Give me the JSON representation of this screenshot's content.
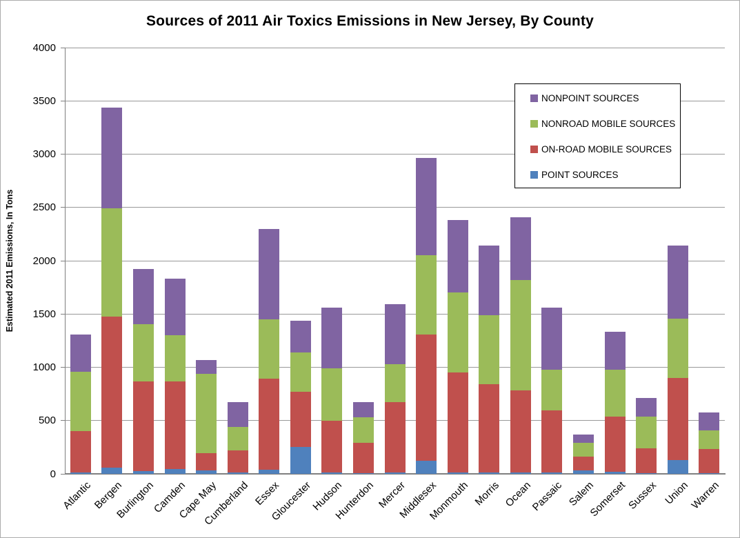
{
  "title": "Sources of 2011 Air Toxics Emissions in New Jersey, By County",
  "y_axis": {
    "label": "Estimated 2011 Emissions, In Tons",
    "min": 0,
    "max": 4000,
    "step": 500
  },
  "legend": {
    "position": "top-right",
    "items": [
      {
        "label": "NONPOINT SOURCES",
        "color": "#8064A2"
      },
      {
        "label": "NONROAD MOBILE SOURCES",
        "color": "#9BBB59"
      },
      {
        "label": "ON-ROAD MOBILE SOURCES",
        "color": "#C0504D"
      },
      {
        "label": "POINT SOURCES",
        "color": "#4F81BD"
      }
    ]
  },
  "chart_data": {
    "type": "bar",
    "stacked": true,
    "title": "Sources of 2011 Air Toxics Emissions in New Jersey, By County",
    "xlabel": "",
    "ylabel": "Estimated 2011 Emissions, In Tons",
    "ylim": [
      0,
      4000
    ],
    "ytick_step": 500,
    "grid": true,
    "legend_position": "top-right",
    "categories": [
      "Atlantic",
      "Bergen",
      "Burlington",
      "Camden",
      "Cape May",
      "Cumberland",
      "Essex",
      "Gloucester",
      "Hudson",
      "Hunterdon",
      "Mercer",
      "Middlesex",
      "Monmouth",
      "Morris",
      "Ocean",
      "Passaic",
      "Salem",
      "Somerset",
      "Sussex",
      "Union",
      "Warren"
    ],
    "series": [
      {
        "name": "POINT SOURCES",
        "color": "#4F81BD",
        "values": [
          15,
          60,
          25,
          45,
          30,
          10,
          40,
          250,
          10,
          5,
          10,
          125,
          10,
          15,
          10,
          10,
          30,
          20,
          5,
          130,
          5
        ]
      },
      {
        "name": "ON-ROAD MOBILE SOURCES",
        "color": "#C0504D",
        "values": [
          385,
          1415,
          840,
          820,
          165,
          210,
          850,
          520,
          490,
          285,
          665,
          1185,
          940,
          825,
          775,
          585,
          130,
          520,
          235,
          770,
          230
        ]
      },
      {
        "name": "NONROAD MOBILE SOURCES",
        "color": "#9BBB59",
        "values": [
          560,
          1020,
          540,
          435,
          745,
          220,
          560,
          370,
          490,
          240,
          355,
          745,
          750,
          650,
          1035,
          385,
          130,
          440,
          300,
          555,
          170
        ]
      },
      {
        "name": "NONPOINT SOURCES",
        "color": "#8064A2",
        "values": [
          350,
          945,
          520,
          530,
          125,
          235,
          850,
          295,
          570,
          145,
          565,
          910,
          685,
          655,
          590,
          580,
          80,
          355,
          175,
          685,
          170
        ]
      }
    ],
    "stack_totals": [
      1310,
      3440,
      1925,
      1830,
      1065,
      675,
      2300,
      1435,
      1560,
      675,
      1595,
      2965,
      2385,
      2145,
      2410,
      1560,
      370,
      1335,
      715,
      2140,
      575
    ]
  },
  "colors": {
    "gridline": "#989898",
    "axis": "#7f7f7f",
    "text": "#000000",
    "background": "#ffffff"
  }
}
